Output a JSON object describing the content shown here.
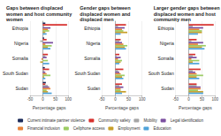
{
  "chart_data": [
    {
      "type": "bar",
      "orientation": "horizontal",
      "grid": true,
      "legend": "bottom",
      "title": "Gaps between displaced women and host community women",
      "x_label": "Percentage gaps",
      "categories": [
        "Ethiopia",
        "Nigeria",
        "Somalia",
        "South Sudan",
        "Sudan"
      ],
      "xlim": [
        -50,
        100
      ],
      "xticks": [
        -50,
        0,
        50,
        100
      ],
      "series": [
        {
          "name": "Current intimate partner violence",
          "color": "#1b2a59",
          "values": [
            10,
            5,
            null,
            8,
            12
          ]
        },
        {
          "name": "Community safety",
          "color": "#d7312e",
          "values": [
            95,
            15,
            20,
            25,
            10
          ]
        },
        {
          "name": "Mobility",
          "color": "#a6a6a6",
          "values": [
            5,
            -10,
            10,
            5,
            20
          ]
        },
        {
          "name": "Legal identification",
          "color": "#7b4fa0",
          "values": [
            30,
            40,
            15,
            10,
            25
          ]
        },
        {
          "name": "Financial inclusion",
          "color": "#e8833a",
          "values": [
            20,
            10,
            -5,
            15,
            30
          ]
        },
        {
          "name": "Cellphone access",
          "color": "#9ccc65",
          "values": [
            25,
            35,
            20,
            30,
            15
          ]
        },
        {
          "name": "Employment",
          "color": "#c8a02a",
          "values": [
            10,
            20,
            -10,
            5,
            20
          ]
        },
        {
          "name": "Education",
          "color": "#4fa3d9",
          "values": [
            15,
            30,
            25,
            10,
            35
          ]
        }
      ]
    },
    {
      "type": "bar",
      "orientation": "horizontal",
      "grid": true,
      "legend": "bottom",
      "title": "Gender gaps between displaced women and displaced men",
      "x_label": "Percentage gaps",
      "categories": [
        "Ethiopia",
        "Nigeria",
        "Somalia",
        "South Sudan",
        "Sudan"
      ],
      "xlim": [
        -50,
        100
      ],
      "xticks": [
        -50,
        0,
        50,
        100
      ],
      "series": [
        {
          "name": "Current intimate partner violence",
          "color": "#1b2a59",
          "values": [
            null,
            null,
            null,
            null,
            null
          ]
        },
        {
          "name": "Community safety",
          "color": "#d7312e",
          "values": [
            40,
            20,
            15,
            30,
            25
          ]
        },
        {
          "name": "Mobility",
          "color": "#a6a6a6",
          "values": [
            10,
            15,
            5,
            10,
            15
          ]
        },
        {
          "name": "Legal identification",
          "color": "#7b4fa0",
          "values": [
            35,
            25,
            20,
            15,
            30
          ]
        },
        {
          "name": "Financial inclusion",
          "color": "#e8833a",
          "values": [
            25,
            30,
            10,
            20,
            20
          ]
        },
        {
          "name": "Cellphone access",
          "color": "#9ccc65",
          "values": [
            30,
            45,
            25,
            35,
            20
          ]
        },
        {
          "name": "Employment",
          "color": "#c8a02a",
          "values": [
            45,
            35,
            20,
            25,
            40
          ]
        },
        {
          "name": "Education",
          "color": "#4fa3d9",
          "values": [
            20,
            40,
            15,
            30,
            25
          ]
        }
      ]
    },
    {
      "type": "bar",
      "orientation": "horizontal",
      "grid": true,
      "legend": "bottom",
      "title": "Larger gender gaps between displaced women and host community men",
      "x_label": "Percentage gaps",
      "categories": [
        "Ethiopia",
        "Nigeria",
        "Somalia",
        "South Sudan",
        "Sudan"
      ],
      "xlim": [
        -50,
        100
      ],
      "xticks": [
        -50,
        0,
        50,
        100
      ],
      "series": [
        {
          "name": "Current intimate partner violence",
          "color": "#1b2a59",
          "values": [
            null,
            null,
            null,
            null,
            null
          ]
        },
        {
          "name": "Community safety",
          "color": "#d7312e",
          "values": [
            95,
            30,
            25,
            45,
            30
          ]
        },
        {
          "name": "Mobility",
          "color": "#a6a6a6",
          "values": [
            15,
            10,
            15,
            15,
            30
          ]
        },
        {
          "name": "Legal identification",
          "color": "#7b4fa0",
          "values": [
            55,
            55,
            30,
            25,
            45
          ]
        },
        {
          "name": "Financial inclusion",
          "color": "#e8833a",
          "values": [
            40,
            35,
            10,
            30,
            45
          ]
        },
        {
          "name": "Cellphone access",
          "color": "#9ccc65",
          "values": [
            50,
            65,
            40,
            55,
            35
          ]
        },
        {
          "name": "Employment",
          "color": "#c8a02a",
          "values": [
            50,
            50,
            15,
            30,
            55
          ]
        },
        {
          "name": "Education",
          "color": "#4fa3d9",
          "values": [
            35,
            60,
            40,
            40,
            55
          ]
        }
      ]
    }
  ]
}
